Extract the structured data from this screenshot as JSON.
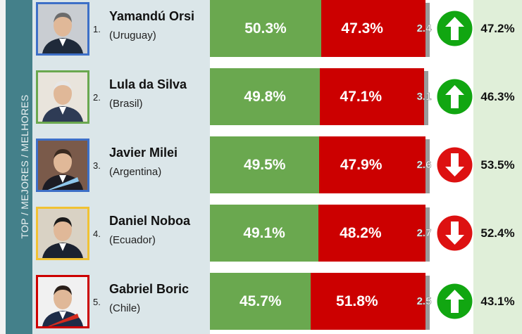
{
  "sidebar": {
    "label": "TOP / MEJORES / MELHORES"
  },
  "colors": {
    "approve": "#6aa84f",
    "disapprove": "#cc0000",
    "trend_up": "#11a611",
    "trend_down": "#dd1111",
    "sidebar": "#44808a",
    "name_panel": "#dbe6e9",
    "right_panel": "#e0efd9"
  },
  "chart_data": {
    "type": "bar",
    "stacked": true,
    "orientation": "horizontal",
    "categories": [
      "Yamandú Orsi",
      "Lula da Silva",
      "Javier Milei",
      "Daniel Noboa",
      "Gabriel Boric"
    ],
    "series": [
      {
        "values": [
          50.3,
          49.8,
          49.5,
          49.1,
          45.7
        ]
      },
      {
        "values": [
          47.3,
          47.1,
          47.9,
          48.2,
          51.8
        ]
      },
      {
        "values": [
          2.4,
          3.1,
          2.6,
          2.7,
          2.5
        ]
      }
    ],
    "xlim": [
      0,
      100
    ]
  },
  "leaders": [
    {
      "rank": "1.",
      "name": "Yamandú Orsi",
      "country": "(Uruguay)",
      "approve_label": "50.3%",
      "disapprove_label": "47.3%",
      "undecided_label": "2.4",
      "trend": "up",
      "trend_icon": "arrow-up-icon",
      "previous_label": "47.2%",
      "photo_icon": "leader-portrait-icon",
      "frame_color": "#3d6fc7"
    },
    {
      "rank": "2.",
      "name": "Lula da Silva",
      "country": "(Brasil)",
      "approve_label": "49.8%",
      "disapprove_label": "47.1%",
      "undecided_label": "3.1",
      "trend": "up",
      "trend_icon": "arrow-up-icon",
      "previous_label": "46.3%",
      "photo_icon": "leader-portrait-icon",
      "frame_color": "#6aa84f"
    },
    {
      "rank": "3.",
      "name": "Javier Milei",
      "country": "(Argentina)",
      "approve_label": "49.5%",
      "disapprove_label": "47.9%",
      "undecided_label": "2.6",
      "trend": "down",
      "trend_icon": "arrow-down-icon",
      "previous_label": "53.5%",
      "photo_icon": "leader-portrait-icon",
      "frame_color": "#3d6fc7"
    },
    {
      "rank": "4.",
      "name": "Daniel Noboa",
      "country": "(Ecuador)",
      "approve_label": "49.1%",
      "disapprove_label": "48.2%",
      "undecided_label": "2.7",
      "trend": "down",
      "trend_icon": "arrow-down-icon",
      "previous_label": "52.4%",
      "photo_icon": "leader-portrait-icon",
      "frame_color": "#f1c232"
    },
    {
      "rank": "5.",
      "name": "Gabriel Boric",
      "country": "(Chile)",
      "approve_label": "45.7%",
      "disapprove_label": "51.8%",
      "undecided_label": "2.5",
      "trend": "up",
      "trend_icon": "arrow-up-icon",
      "previous_label": "43.1%",
      "photo_icon": "leader-portrait-icon",
      "frame_color": "#cc0000"
    }
  ]
}
